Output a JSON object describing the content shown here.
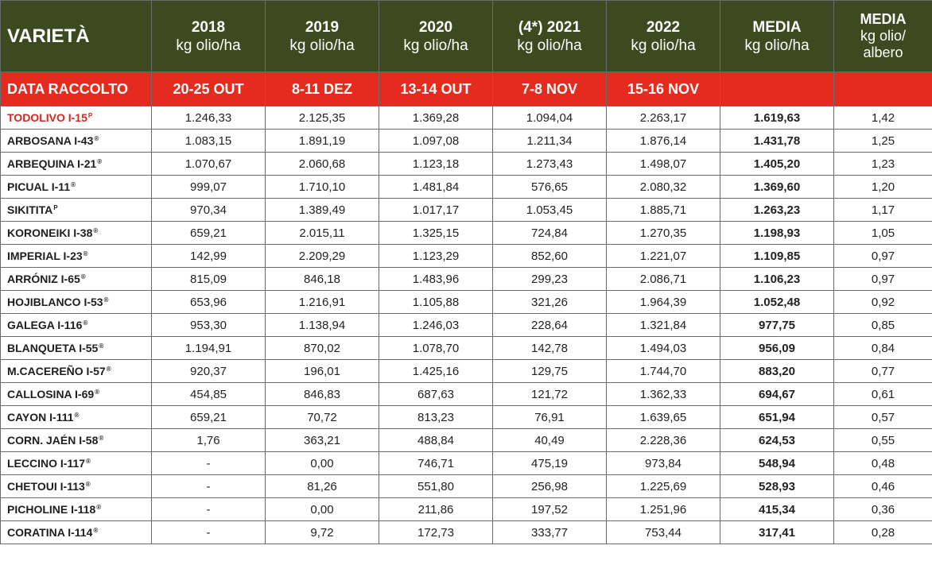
{
  "header": {
    "variety": "VARIETÀ",
    "columns": [
      {
        "year": "2018",
        "unit": "kg olio/ha"
      },
      {
        "year": "2019",
        "unit": "kg olio/ha"
      },
      {
        "year": "2020",
        "unit": "kg olio/ha"
      },
      {
        "year": "(4*) 2021",
        "unit": "kg olio/ha"
      },
      {
        "year": "2022",
        "unit": "kg olio/ha"
      },
      {
        "year": "MEDIA",
        "unit": "kg olio/ha"
      },
      {
        "year": "MEDIA",
        "unit": "kg olio/ albero"
      }
    ]
  },
  "harvest": {
    "label": "DATA RACCOLTO",
    "dates": [
      "20-25 OUT",
      "8-11 DEZ",
      "13-14  OUT",
      "7-8 NOV",
      "15-16 NOV",
      "",
      ""
    ]
  },
  "colors": {
    "header_bg": "#3b4a1f",
    "date_row_bg": "#e52b1e",
    "highlight_text": "#d7261d"
  },
  "rows": [
    {
      "name": "TODOLIVO I-15",
      "mark": "P",
      "highlight": true,
      "values": [
        "1.246,33",
        "2.125,35",
        "1.369,28",
        "1.094,04",
        "2.263,17",
        "1.619,63",
        "1,42"
      ]
    },
    {
      "name": "ARBOSANA I-43",
      "mark": "®",
      "values": [
        "1.083,15",
        "1.891,19",
        "1.097,08",
        "1.211,34",
        "1.876,14",
        "1.431,78",
        "1,25"
      ]
    },
    {
      "name": "ARBEQUINA I-21",
      "mark": "®",
      "values": [
        "1.070,67",
        "2.060,68",
        "1.123,18",
        "1.273,43",
        "1.498,07",
        "1.405,20",
        "1,23"
      ]
    },
    {
      "name": "PICUAL I-11",
      "mark": "®",
      "values": [
        "999,07",
        "1.710,10",
        "1.481,84",
        "576,65",
        "2.080,32",
        "1.369,60",
        "1,20"
      ]
    },
    {
      "name": "SIKITITA",
      "mark": "P",
      "values": [
        "970,34",
        "1.389,49",
        "1.017,17",
        "1.053,45",
        "1.885,71",
        "1.263,23",
        "1,17"
      ]
    },
    {
      "name": "KORONEIKI I-38",
      "mark": "®",
      "values": [
        "659,21",
        "2.015,11",
        "1.325,15",
        "724,84",
        "1.270,35",
        "1.198,93",
        "1,05"
      ]
    },
    {
      "name": "IMPERIAL I-23",
      "mark": "®",
      "values": [
        "142,99",
        "2.209,29",
        "1.123,29",
        "852,60",
        "1.221,07",
        "1.109,85",
        "0,97"
      ]
    },
    {
      "name": "ARRÓNIZ I-65",
      "mark": "®",
      "values": [
        "815,09",
        "846,18",
        "1.483,96",
        "299,23",
        "2.086,71",
        "1.106,23",
        "0,97"
      ]
    },
    {
      "name": "HOJIBLANCO I-53",
      "mark": "®",
      "values": [
        "653,96",
        "1.216,91",
        "1.105,88",
        "321,26",
        "1.964,39",
        "1.052,48",
        "0,92"
      ]
    },
    {
      "name": "GALEGA I-116",
      "mark": "®",
      "values": [
        "953,30",
        "1.138,94",
        "1.246,03",
        "228,64",
        "1.321,84",
        "977,75",
        "0,85"
      ]
    },
    {
      "name": "BLANQUETA I-55",
      "mark": "®",
      "values": [
        "1.194,91",
        "870,02",
        "1.078,70",
        "142,78",
        "1.494,03",
        "956,09",
        "0,84"
      ]
    },
    {
      "name": "M.CACEREÑO I-57",
      "mark": "®",
      "values": [
        "920,37",
        "196,01",
        "1.425,16",
        "129,75",
        "1.744,70",
        "883,20",
        "0,77"
      ]
    },
    {
      "name": "CALLOSINA I-69",
      "mark": "®",
      "values": [
        "454,85",
        "846,83",
        "687,63",
        "121,72",
        "1.362,33",
        "694,67",
        "0,61"
      ]
    },
    {
      "name": "CAYON I-111",
      "mark": "®",
      "values": [
        "659,21",
        "70,72",
        "813,23",
        "76,91",
        "1.639,65",
        "651,94",
        "0,57"
      ]
    },
    {
      "name": "CORN. JAÉN I-58",
      "mark": "®",
      "values": [
        "1,76",
        "363,21",
        "488,84",
        "40,49",
        "2.228,36",
        "624,53",
        "0,55"
      ]
    },
    {
      "name": "LECCINO I-117",
      "mark": "®",
      "values": [
        "-",
        "0,00",
        "746,71",
        "475,19",
        "973,84",
        "548,94",
        "0,48"
      ]
    },
    {
      "name": "CHETOUI I-113",
      "mark": "®",
      "values": [
        "-",
        "81,26",
        "551,80",
        "256,98",
        "1.225,69",
        "528,93",
        "0,46"
      ]
    },
    {
      "name": "PICHOLINE I-118",
      "mark": "®",
      "values": [
        "-",
        "0,00",
        "211,86",
        "197,52",
        "1.251,96",
        "415,34",
        "0,36"
      ]
    },
    {
      "name": "CORATINA I-114",
      "mark": "®",
      "values": [
        "-",
        "9,72",
        "172,73",
        "333,77",
        "753,44",
        "317,41",
        "0,28"
      ]
    }
  ]
}
